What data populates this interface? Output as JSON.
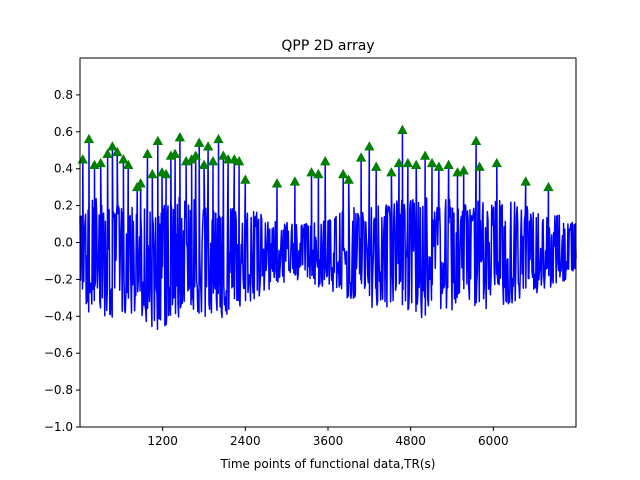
{
  "chart_data": {
    "type": "line",
    "title": "QPP 2D array",
    "xlabel": "Time points of functional data,TR(s)",
    "ylabel": "",
    "xlim": [
      0,
      7200
    ],
    "ylim": [
      -1.0,
      1.0
    ],
    "xticks": [
      1200,
      2400,
      3600,
      4800,
      6000
    ],
    "yticks": [
      -1.0,
      -0.8,
      -0.6,
      -0.4,
      -0.2,
      0.0,
      0.2,
      0.4,
      0.6,
      0.8
    ],
    "ytick_labels": [
      "−1.0",
      "−0.8",
      "−0.6",
      "−0.4",
      "−0.2",
      "0.0",
      "0.2",
      "0.4",
      "0.6",
      "0.8"
    ],
    "grid": false,
    "legend": "none",
    "series": [
      {
        "kind": "line",
        "color": "#0000ff",
        "description": "dense oscillating signal; envelope values below",
        "upper_envelope": [
          [
            0,
            0.18
          ],
          [
            200,
            0.25
          ],
          [
            500,
            0.22
          ],
          [
            800,
            0.2
          ],
          [
            1100,
            0.18
          ],
          [
            1400,
            0.26
          ],
          [
            1700,
            0.24
          ],
          [
            2000,
            0.22
          ],
          [
            2300,
            0.2
          ],
          [
            2600,
            0.16
          ],
          [
            2900,
            0.12
          ],
          [
            3200,
            0.1
          ],
          [
            3500,
            0.12
          ],
          [
            3800,
            0.18
          ],
          [
            4100,
            0.2
          ],
          [
            4400,
            0.22
          ],
          [
            4700,
            0.24
          ],
          [
            5000,
            0.26
          ],
          [
            5300,
            0.24
          ],
          [
            5600,
            0.22
          ],
          [
            5900,
            0.24
          ],
          [
            6200,
            0.25
          ],
          [
            6500,
            0.2
          ],
          [
            6800,
            0.18
          ],
          [
            7200,
            0.1
          ]
        ],
        "lower_envelope": [
          [
            0,
            -0.3
          ],
          [
            200,
            -0.45
          ],
          [
            500,
            -0.4
          ],
          [
            800,
            -0.38
          ],
          [
            1100,
            -0.48
          ],
          [
            1400,
            -0.42
          ],
          [
            1700,
            -0.4
          ],
          [
            2000,
            -0.42
          ],
          [
            2300,
            -0.38
          ],
          [
            2600,
            -0.3
          ],
          [
            2900,
            -0.22
          ],
          [
            3200,
            -0.2
          ],
          [
            3500,
            -0.25
          ],
          [
            3800,
            -0.3
          ],
          [
            4100,
            -0.34
          ],
          [
            4400,
            -0.38
          ],
          [
            4700,
            -0.36
          ],
          [
            5000,
            -0.42
          ],
          [
            5300,
            -0.38
          ],
          [
            5600,
            -0.34
          ],
          [
            5900,
            -0.36
          ],
          [
            6200,
            -0.34
          ],
          [
            6500,
            -0.3
          ],
          [
            6800,
            -0.25
          ],
          [
            7200,
            -0.2
          ]
        ]
      },
      {
        "kind": "markers",
        "marker": "triangle-up",
        "color": "#008000",
        "points": [
          [
            40,
            0.45
          ],
          [
            130,
            0.56
          ],
          [
            210,
            0.42
          ],
          [
            300,
            0.43
          ],
          [
            400,
            0.48
          ],
          [
            470,
            0.52
          ],
          [
            540,
            0.49
          ],
          [
            630,
            0.45
          ],
          [
            700,
            0.42
          ],
          [
            830,
            0.3
          ],
          [
            880,
            0.32
          ],
          [
            980,
            0.48
          ],
          [
            1050,
            0.37
          ],
          [
            1130,
            0.55
          ],
          [
            1190,
            0.38
          ],
          [
            1250,
            0.37
          ],
          [
            1320,
            0.47
          ],
          [
            1380,
            0.48
          ],
          [
            1450,
            0.57
          ],
          [
            1540,
            0.44
          ],
          [
            1620,
            0.45
          ],
          [
            1680,
            0.47
          ],
          [
            1730,
            0.54
          ],
          [
            1800,
            0.42
          ],
          [
            1860,
            0.52
          ],
          [
            1930,
            0.44
          ],
          [
            2010,
            0.56
          ],
          [
            2080,
            0.47
          ],
          [
            2150,
            0.45
          ],
          [
            2240,
            0.45
          ],
          [
            2310,
            0.44
          ],
          [
            2400,
            0.34
          ],
          [
            2860,
            0.32
          ],
          [
            3120,
            0.33
          ],
          [
            3360,
            0.38
          ],
          [
            3460,
            0.37
          ],
          [
            3560,
            0.44
          ],
          [
            3820,
            0.37
          ],
          [
            3900,
            0.34
          ],
          [
            4080,
            0.46
          ],
          [
            4200,
            0.52
          ],
          [
            4300,
            0.41
          ],
          [
            4520,
            0.38
          ],
          [
            4630,
            0.43
          ],
          [
            4680,
            0.61
          ],
          [
            4760,
            0.43
          ],
          [
            4880,
            0.42
          ],
          [
            5010,
            0.47
          ],
          [
            5110,
            0.43
          ],
          [
            5210,
            0.41
          ],
          [
            5350,
            0.42
          ],
          [
            5480,
            0.38
          ],
          [
            5570,
            0.39
          ],
          [
            5750,
            0.55
          ],
          [
            5800,
            0.41
          ],
          [
            6050,
            0.43
          ],
          [
            6470,
            0.33
          ],
          [
            6800,
            0.3
          ]
        ]
      }
    ]
  }
}
